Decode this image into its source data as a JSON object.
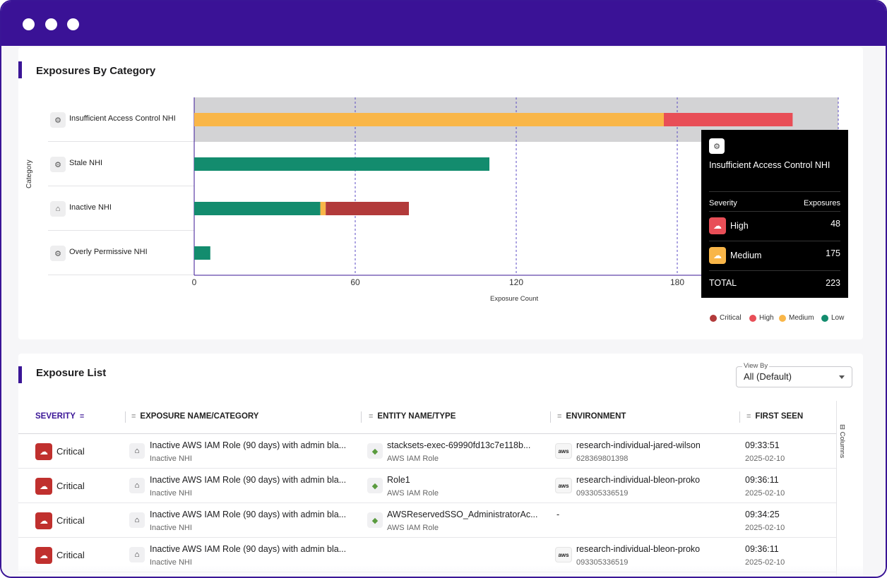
{
  "chart_card": {
    "title": "Exposures By Category",
    "y_axis_title": "Category",
    "x_axis_title": "Exposure Count"
  },
  "chart_data": {
    "type": "bar",
    "orientation": "horizontal",
    "stacked": true,
    "categories": [
      "Insufficient Access Control NHI",
      "Stale NHI",
      "Inactive NHI",
      "Overly Permissive NHI"
    ],
    "series": [
      {
        "name": "Critical",
        "color": "#b23a3a",
        "values": [
          0,
          0,
          31,
          0
        ]
      },
      {
        "name": "High",
        "color": "#e84e57",
        "values": [
          48,
          0,
          0,
          0
        ]
      },
      {
        "name": "Medium",
        "color": "#f9b648",
        "values": [
          175,
          0,
          2,
          0
        ]
      },
      {
        "name": "Low",
        "color": "#138c6e",
        "values": [
          0,
          110,
          47,
          6
        ]
      }
    ],
    "x_ticks": [
      "0",
      "60",
      "120",
      "180"
    ],
    "xlim": [
      0,
      240
    ],
    "xlabel": "Exposure Count",
    "ylabel": "Category",
    "highlighted_category": "Insufficient Access Control NHI",
    "grid": "vertical-dashed",
    "legend_position": "bottom-right"
  },
  "tooltip": {
    "title": "Insufficient Access Control NHI",
    "col_severity": "Severity",
    "col_exposures": "Exposures",
    "rows": [
      {
        "severity": "High",
        "value": "48",
        "color": "#e84e57"
      },
      {
        "severity": "Medium",
        "value": "175",
        "color": "#f9b648"
      }
    ],
    "total_label": "TOTAL",
    "total_value": "223"
  },
  "legend": [
    {
      "label": "Critical",
      "color": "#b23a3a"
    },
    {
      "label": "High",
      "color": "#e84e57"
    },
    {
      "label": "Medium",
      "color": "#f9b648"
    },
    {
      "label": "Low",
      "color": "#138c6e"
    }
  ],
  "list_card": {
    "title": "Exposure List",
    "view_by_label": "View By",
    "view_by_value": "All (Default)",
    "columns_button": "Columns",
    "headers": {
      "severity": "SEVERITY",
      "exposure": "EXPOSURE NAME/CATEGORY",
      "entity": "ENTITY NAME/TYPE",
      "environment": "ENVIRONMENT",
      "first_seen": "FIRST SEEN"
    },
    "rows": [
      {
        "severity": "Critical",
        "exposure": "Inactive AWS IAM Role (90 days) with admin bla...",
        "category": "Inactive NHI",
        "entity": "stacksets-exec-69990fd13c7e118b...",
        "entity_type": "AWS IAM Role",
        "environment": "research-individual-jared-wilson",
        "account": "628369801398",
        "time": "09:33:51",
        "date": "2025-02-10"
      },
      {
        "severity": "Critical",
        "exposure": "Inactive AWS IAM Role (90 days) with admin bla...",
        "category": "Inactive NHI",
        "entity": "Role1",
        "entity_type": "AWS IAM Role",
        "environment": "research-individual-bleon-proko",
        "account": "093305336519",
        "time": "09:36:11",
        "date": "2025-02-10"
      },
      {
        "severity": "Critical",
        "exposure": "Inactive AWS IAM Role (90 days) with admin bla...",
        "category": "Inactive NHI",
        "entity": "AWSReservedSSO_AdministratorAc...",
        "entity_type": "AWS IAM Role",
        "environment": "-",
        "account": "",
        "time": "09:34:25",
        "date": "2025-02-10"
      },
      {
        "severity": "Critical",
        "exposure": "Inactive AWS IAM Role (90 days) with admin bla...",
        "category": "Inactive NHI",
        "entity": "",
        "entity_type": "",
        "environment": "research-individual-bleon-proko",
        "account": "093305336519",
        "time": "09:36:11",
        "date": "2025-02-10"
      }
    ]
  }
}
